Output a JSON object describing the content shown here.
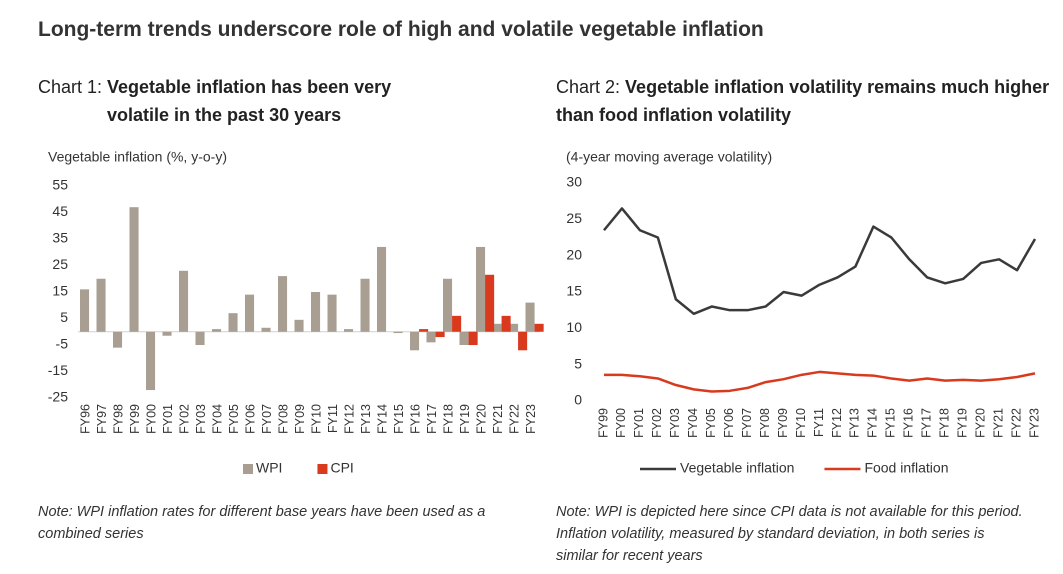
{
  "title": "Long-term trends underscore role of high and volatile vegetable inflation",
  "chart_data": [
    {
      "type": "bar",
      "label": "Chart 1:",
      "title": "Vegetable inflation has been very volatile in the past 30 years",
      "ylabel": "Vegetable inflation (%, y-o-y)",
      "categories": [
        "FY96",
        "FY97",
        "FY98",
        "FY99",
        "FY00",
        "FY01",
        "FY02",
        "FY03",
        "FY04",
        "FY05",
        "FY06",
        "FY07",
        "FY08",
        "FY09",
        "FY10",
        "FY11",
        "FY12",
        "FY13",
        "FY14",
        "FY15",
        "FY16",
        "FY17",
        "FY18",
        "FY19",
        "FY20",
        "FY21",
        "FY22",
        "FY23"
      ],
      "series": [
        {
          "name": "WPI",
          "color": "#a89e92",
          "values": [
            16,
            20,
            -6,
            47,
            -22,
            -1.5,
            23,
            -5,
            1,
            7,
            14,
            1.5,
            21,
            4.5,
            15,
            14,
            1,
            20,
            32,
            -0.5,
            -7,
            -4,
            20,
            -5,
            32,
            3,
            3,
            11
          ]
        },
        {
          "name": "CPI",
          "color": "#d93a1e",
          "values": [
            null,
            null,
            null,
            null,
            null,
            null,
            null,
            null,
            null,
            null,
            null,
            null,
            null,
            null,
            null,
            null,
            null,
            null,
            null,
            null,
            1,
            -2,
            6,
            -5,
            21.5,
            6,
            -7,
            3
          ]
        }
      ],
      "ylim": [
        -25,
        55
      ],
      "yticks": [
        -25,
        -15,
        -5,
        5,
        15,
        25,
        35,
        45,
        55
      ],
      "legend": "bottom",
      "note": "Note: WPI inflation rates for different base years have been used as a combined series"
    },
    {
      "type": "line",
      "label": "Chart 2:",
      "title": "Vegetable inflation volatility remains much higher than food inflation volatility",
      "ylabel": "(4-year moving average volatility)",
      "categories": [
        "FY99",
        "FY00",
        "FY01",
        "FY02",
        "FY03",
        "FY04",
        "FY05",
        "FY06",
        "FY07",
        "FY08",
        "FY09",
        "FY10",
        "FY11",
        "FY12",
        "FY13",
        "FY14",
        "FY15",
        "FY16",
        "FY17",
        "FY18",
        "FY19",
        "FY20",
        "FY21",
        "FY22",
        "FY23"
      ],
      "series": [
        {
          "name": "Vegetable inflation",
          "color": "#3a3a3a",
          "values": [
            23.5,
            26.5,
            23.5,
            22.5,
            14,
            12,
            13,
            12.5,
            12.5,
            13,
            15,
            14.5,
            16,
            17,
            18.5,
            24,
            22.5,
            19.5,
            17,
            16.2,
            16.8,
            19,
            19.5,
            18,
            22.3
          ]
        },
        {
          "name": "Food inflation",
          "color": "#d93a1e",
          "values": [
            3.6,
            3.6,
            3.4,
            3.1,
            2.2,
            1.6,
            1.3,
            1.4,
            1.8,
            2.6,
            3.0,
            3.6,
            4.0,
            3.8,
            3.6,
            3.5,
            3.1,
            2.8,
            3.1,
            2.8,
            2.9,
            2.8,
            3.0,
            3.3,
            3.8
          ]
        }
      ],
      "ylim": [
        0,
        30
      ],
      "yticks": [
        0,
        5,
        10,
        15,
        20,
        25,
        30
      ],
      "legend": "bottom",
      "note": "Note: WPI is depicted here since CPI data is not available for this period. Inflation volatility, measured by standard deviation, in both series is similar for recent years"
    }
  ]
}
